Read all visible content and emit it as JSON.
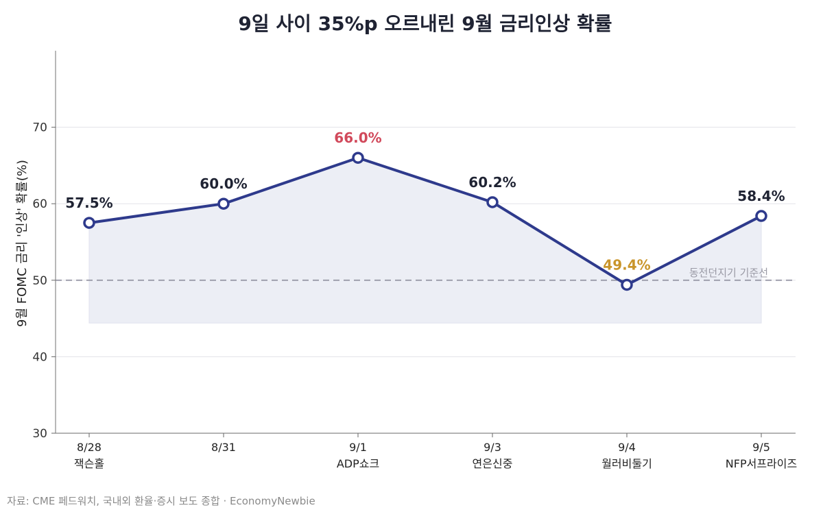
{
  "chart_data": {
    "type": "line",
    "title": "9일 사이 35%p 오르내린 9월 금리인상 확률",
    "ylabel": "9월 FOMC 금리 '인상' 확률(%)",
    "xlabel": "",
    "ylim": [
      30,
      80
    ],
    "yticks": [
      "30",
      "40",
      "50",
      "60",
      "70"
    ],
    "categories": [
      {
        "date": "8/28",
        "event": "잭슨홀"
      },
      {
        "date": "8/31",
        "event": ""
      },
      {
        "date": "9/1",
        "event": "ADP쇼크"
      },
      {
        "date": "9/3",
        "event": "연은신중"
      },
      {
        "date": "9/4",
        "event": "월러비둘기"
      },
      {
        "date": "9/5",
        "event": "NFP서프라이즈"
      }
    ],
    "values": [
      57.5,
      60.0,
      66.0,
      60.2,
      49.4,
      58.4
    ],
    "data_labels": [
      "57.5%",
      "60.0%",
      "66.0%",
      "60.2%",
      "49.4%",
      "58.4%"
    ],
    "reference_line": {
      "value": 50,
      "label": "동전던지기 기준선"
    },
    "fill_floor": 44.4,
    "grid": true,
    "colors": {
      "line": "#2e3a8c",
      "fill": "#eceef5",
      "peak_label": "#d1495b",
      "trough_label": "#c9952b",
      "normal_label": "#1f2333",
      "reference": "#9a9aa8",
      "grid": "#e3e3e8"
    }
  },
  "source": "자료: CME 페드워치, 국내외 환율·증시 보도 종합 · EconomyNewbie"
}
